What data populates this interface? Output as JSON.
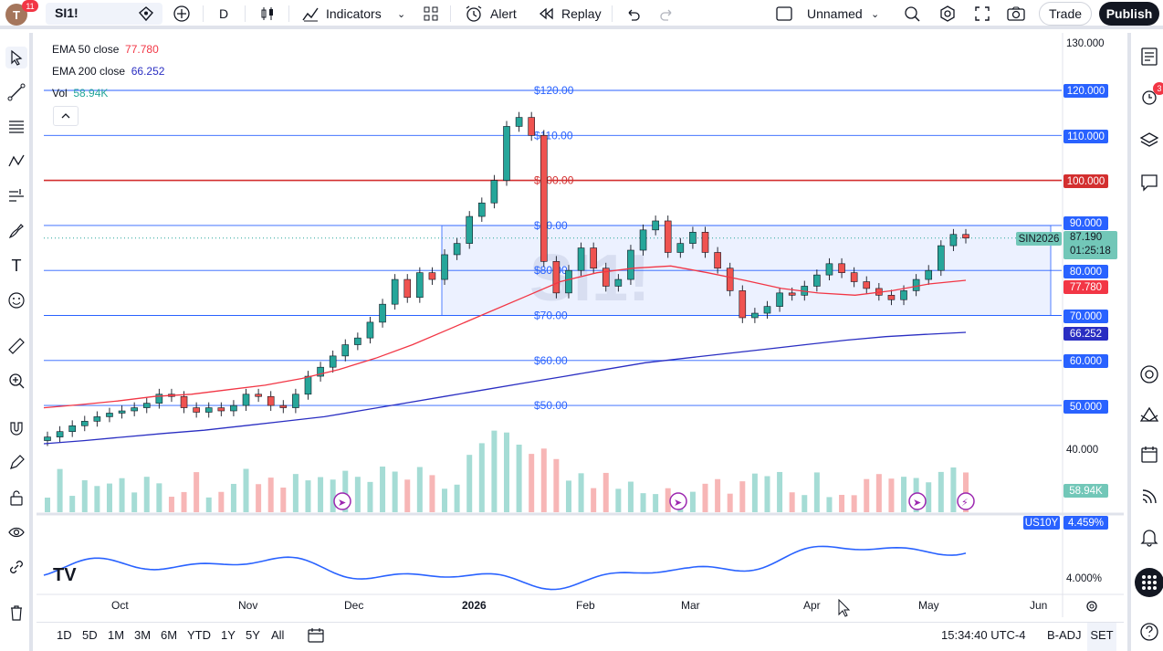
{
  "topbar": {
    "avatar_letter": "T",
    "avatar_badge": "11",
    "symbol": "SI1!",
    "interval": "D",
    "indicators": "Indicators",
    "alert": "Alert",
    "replay": "Replay",
    "layout_name": "Unnamed",
    "trade": "Trade",
    "publish": "Publish"
  },
  "legend": {
    "ema50_label": "EMA 50 close",
    "ema50_value": "77.780",
    "ema200_label": "EMA 200 close",
    "ema200_value": "66.252",
    "vol_label": "Vol",
    "vol_value": "58.94K"
  },
  "colors": {
    "ema50": "#f23645",
    "ema200": "#2a2ec2",
    "up": "#26a69a",
    "down": "#ef5350",
    "blue_line": "#2962ff",
    "red_line": "#d32f2f",
    "teal_label": "#72c7b8",
    "vol_up": "#a5dcd5",
    "vol_down": "#f7b6b6"
  },
  "chart_data": {
    "type": "candlestick",
    "symbol": "SI1!",
    "ylim": [
      40,
      130
    ],
    "x_ticks": [
      "Oct",
      "Nov",
      "Dec",
      "2026",
      "Feb",
      "Mar",
      "Apr",
      "May",
      "Jun"
    ],
    "y_axis_labels": [
      "130.000",
      "40.000"
    ],
    "horizontal_levels": [
      {
        "label": "$120.00",
        "axis": "120.000",
        "value": 120
      },
      {
        "label": "$110.00",
        "axis": "110.000",
        "value": 110
      },
      {
        "label": "$100.00",
        "axis": "100.000",
        "value": 100,
        "color": "red"
      },
      {
        "label": "$90.00",
        "axis": "90.000",
        "value": 90
      },
      {
        "label": "$80.00",
        "axis": "80.000",
        "value": 80
      },
      {
        "label": "$70.00",
        "axis": "70.000",
        "value": 70
      },
      {
        "label": "$60.00",
        "axis": "60.000",
        "value": 60
      },
      {
        "label": "$50.00",
        "axis": "50.000",
        "value": 50
      }
    ],
    "current_price": {
      "contract": "SIN2026",
      "price": "87.190",
      "countdown": "01:25:18"
    },
    "ema50_axis": "77.780",
    "ema200_axis": "66.252",
    "volume_axis": "58.94K",
    "closes": [
      43.0,
      44.2,
      45.5,
      46.5,
      47.5,
      48.3,
      48.8,
      49.5,
      50.5,
      52.5,
      52.0,
      49.5,
      48.5,
      49.5,
      48.8,
      50.0,
      52.5,
      52.0,
      50.0,
      49.5,
      52.5,
      56.5,
      58.5,
      61.0,
      63.5,
      65.0,
      68.5,
      72.5,
      78.0,
      74.0,
      79.5,
      78.0,
      83.5,
      86.0,
      92.0,
      95.0,
      100.0,
      112.0,
      114.0,
      110.0,
      82.0,
      75.0,
      80.0,
      85.0,
      80.5,
      76.5,
      78.0,
      84.5,
      89.0,
      91.0,
      84.0,
      86.0,
      88.5,
      84.0,
      80.5,
      75.5,
      69.5,
      70.5,
      72.0,
      75.0,
      74.5,
      76.5,
      79.0,
      81.5,
      79.5,
      77.5,
      76.0,
      74.5,
      73.5,
      75.5,
      78.0,
      80.0,
      85.5,
      88.0,
      87.2
    ],
    "ema50": [
      49.5,
      50.2,
      51.0,
      52.0,
      52.5,
      53.5,
      54.5,
      56.0,
      58.0,
      60.5,
      63.5,
      67.0,
      70.5,
      74.0,
      77.5,
      79.5,
      80.5,
      81.0,
      79.5,
      77.8,
      76.0,
      75.0,
      74.5,
      75.5,
      77.0,
      77.8
    ],
    "ema200": [
      41.5,
      42.2,
      43.0,
      43.8,
      44.5,
      45.5,
      46.5,
      47.5,
      49.0,
      50.5,
      52.0,
      53.5,
      55.0,
      56.5,
      58.0,
      59.5,
      60.5,
      61.5,
      62.5,
      63.5,
      64.5,
      65.3,
      65.8,
      66.252
    ],
    "us10y": {
      "label": "US10Y",
      "value": "4.459%",
      "axis": "4.000%"
    }
  },
  "time_axis_labels": [
    "Oct",
    "Nov",
    "Dec",
    "2026",
    "Feb",
    "Mar",
    "Apr",
    "May",
    "Jun"
  ],
  "bottombar": {
    "ranges": [
      "1D",
      "5D",
      "1M",
      "3M",
      "6M",
      "YTD",
      "1Y",
      "5Y",
      "All"
    ],
    "clock": "15:34:40 UTC-4",
    "badj": "B-ADJ",
    "set": "SET"
  },
  "right_badge": "3"
}
